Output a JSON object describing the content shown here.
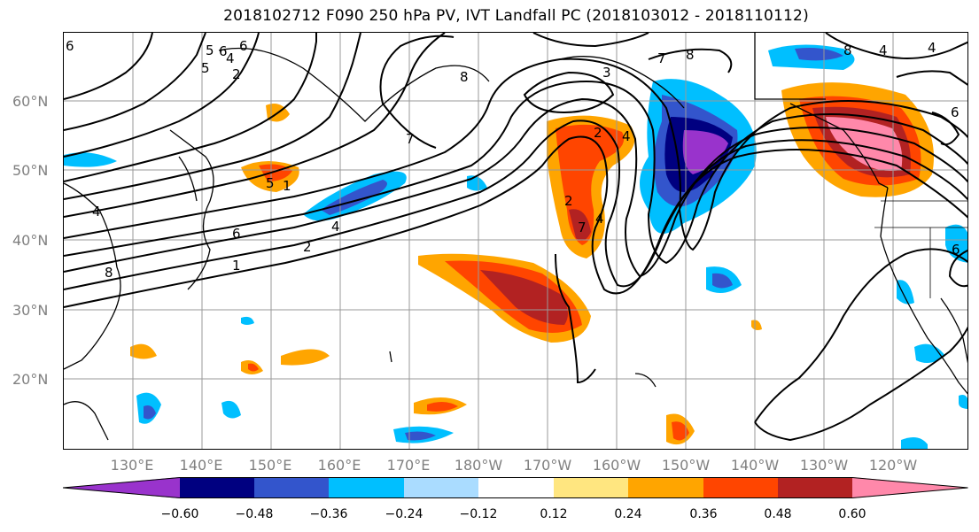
{
  "title": "2018102712 F090 250 hPa PV, IVT Landfall PC (2018103012 - 2018110112)",
  "lat_labels": [
    "60°N",
    "50°N",
    "40°N",
    "30°N",
    "20°N"
  ],
  "lon_labels": [
    "130°E",
    "140°E",
    "150°E",
    "160°E",
    "170°E",
    "180°W",
    "170°W",
    "160°W",
    "150°W",
    "140°W",
    "130°W",
    "120°W"
  ],
  "colorbar": {
    "ticks": [
      "−0.60",
      "−0.48",
      "−0.36",
      "−0.24",
      "−0.12",
      "0.12",
      "0.24",
      "0.36",
      "0.48",
      "0.60"
    ],
    "colors": [
      "#9933cc",
      "#000080",
      "#3355cc",
      "#00bfff",
      "#aadcff",
      "#ffffff",
      "#ffe680",
      "#ffa500",
      "#ff4500",
      "#b22222",
      "#ff88aa"
    ]
  },
  "contour_labels": [
    "6",
    "5",
    "4",
    "6",
    "2",
    "7",
    "8",
    "3",
    "2",
    "7",
    "8",
    "4",
    "4",
    "1",
    "4",
    "6",
    "2",
    "1",
    "8",
    "5",
    "2",
    "4",
    "6",
    "8",
    "7",
    "5",
    "6",
    "4",
    "4",
    "6"
  ],
  "icons": [
    "map-coastlines",
    "contour-lines",
    "shaded-anomalies"
  ]
}
